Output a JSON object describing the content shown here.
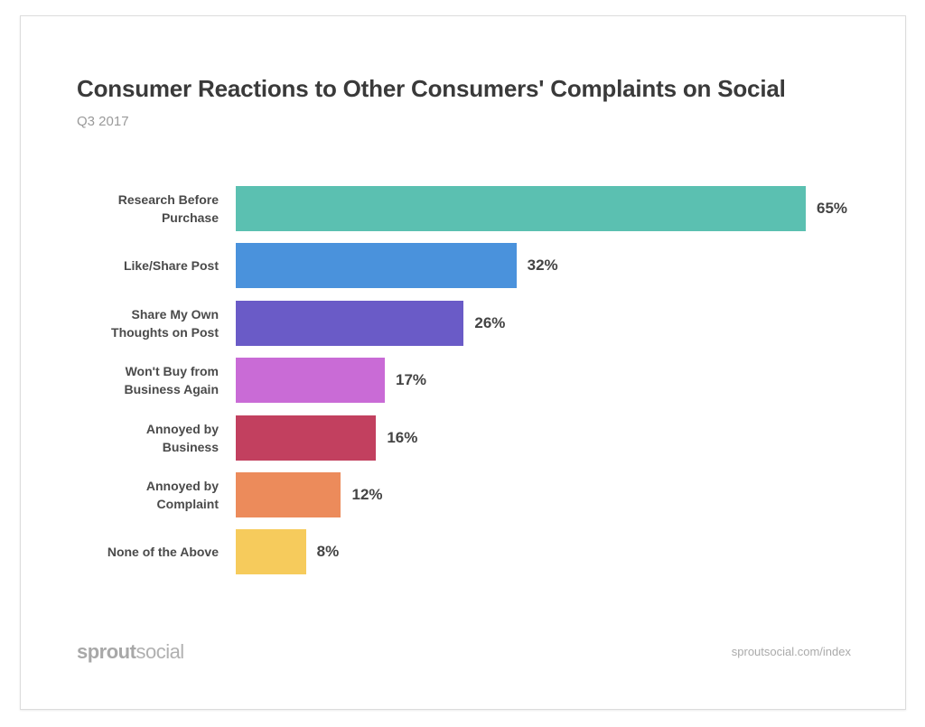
{
  "chart_data": {
    "type": "bar",
    "orientation": "horizontal",
    "title": "Consumer Reactions to Other Consumers' Complaints on Social",
    "subtitle": "Q3 2017",
    "categories": [
      [
        "Research Before",
        "Purchase"
      ],
      [
        "Like/Share Post"
      ],
      [
        "Share My Own",
        "Thoughts on Post"
      ],
      [
        "Won't Buy from",
        "Business Again"
      ],
      [
        "Annoyed by",
        "Business"
      ],
      [
        "Annoyed by",
        "Complaint"
      ],
      [
        "None of the Above"
      ]
    ],
    "values": [
      65,
      32,
      26,
      17,
      16,
      12,
      8
    ],
    "value_labels": [
      "65%",
      "32%",
      "26%",
      "17%",
      "16%",
      "12%",
      "8%"
    ],
    "colors": [
      "#5bc0b1",
      "#4a92dc",
      "#6a5bc7",
      "#c96bd6",
      "#c2405f",
      "#ec8b5b",
      "#f6cb5c"
    ],
    "xlim": [
      0,
      65
    ],
    "grid": false,
    "unit": "%"
  },
  "footer": {
    "logo_bold": "sprout",
    "logo_light": "social",
    "source": "sproutsocial.com/index"
  }
}
